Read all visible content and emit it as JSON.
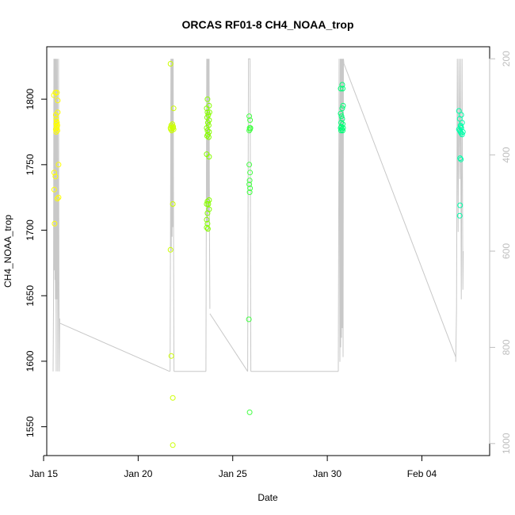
{
  "chart_data": {
    "type": "scatter",
    "title": "ORCAS RF01-8 CH4_NOAA_trop",
    "xlabel": "Date",
    "ylabel": "CH4_NOAA_trop",
    "x_axis": {
      "type": "date",
      "range": [
        "2016-01-15T04:00",
        "2016-02-07T14:00"
      ],
      "ticks": [
        {
          "value": "2016-01-15",
          "label": "Jan 15"
        },
        {
          "value": "2016-01-20",
          "label": "Jan 20"
        },
        {
          "value": "2016-01-25",
          "label": "Jan 25"
        },
        {
          "value": "2016-01-30",
          "label": "Jan 30"
        },
        {
          "value": "2016-02-04",
          "label": "Feb 04"
        }
      ]
    },
    "y_axis": {
      "range": [
        1528,
        1840
      ],
      "ticks": [
        1550,
        1600,
        1650,
        1700,
        1750,
        1800
      ]
    },
    "y2_axis": {
      "range": [
        1025,
        175
      ],
      "reversed": true,
      "color": "#bebebe",
      "ticks": [
        200,
        400,
        600,
        800,
        1000
      ]
    },
    "series": [
      {
        "color": "#ffff00",
        "points": [
          [
            "2016-01-15T13:00",
            1803
          ],
          [
            "2016-01-15T15:00",
            1805
          ],
          [
            "2016-01-15T17:00",
            1805
          ],
          [
            "2016-01-15T15:30",
            1788
          ],
          [
            "2016-01-15T16:00",
            1785
          ],
          [
            "2016-01-15T18:00",
            1790
          ],
          [
            "2016-01-15T16:30",
            1783
          ],
          [
            "2016-01-15T17:00",
            1782
          ],
          [
            "2016-01-15T16:00",
            1781
          ],
          [
            "2016-01-15T17:30",
            1780
          ],
          [
            "2016-01-15T16:30",
            1779
          ],
          [
            "2016-01-15T17:00",
            1778
          ],
          [
            "2016-01-15T15:30",
            1777
          ],
          [
            "2016-01-15T17:30",
            1776
          ],
          [
            "2016-01-15T16:00",
            1775
          ],
          [
            "2016-01-15T18:00",
            1799
          ],
          [
            "2016-01-15T13:30",
            1744
          ],
          [
            "2016-01-15T15:00",
            1741
          ],
          [
            "2016-01-15T19:00",
            1750
          ],
          [
            "2016-01-15T13:30",
            1731
          ],
          [
            "2016-01-15T17:30",
            1724
          ],
          [
            "2016-01-15T19:00",
            1725
          ],
          [
            "2016-01-15T14:00",
            1705
          ]
        ]
      },
      {
        "color": "#ccff00",
        "points": [
          [
            "2016-01-21T17:00",
            1827
          ],
          [
            "2016-01-21T21:00",
            1793
          ],
          [
            "2016-01-21T17:00",
            1778
          ],
          [
            "2016-01-21T18:00",
            1780
          ],
          [
            "2016-01-21T19:00",
            1779
          ],
          [
            "2016-01-21T20:00",
            1778
          ],
          [
            "2016-01-21T18:30",
            1776
          ],
          [
            "2016-01-21T20:30",
            1779
          ],
          [
            "2016-01-21T19:30",
            1781
          ],
          [
            "2016-01-21T21:00",
            1777
          ],
          [
            "2016-01-21T17:30",
            1777
          ],
          [
            "2016-01-21T20:00",
            1720
          ],
          [
            "2016-01-21T17:00",
            1685
          ],
          [
            "2016-01-21T18:00",
            1604
          ],
          [
            "2016-01-21T20:00",
            1572
          ],
          [
            "2016-01-21T20:00",
            1536
          ]
        ]
      },
      {
        "color": "#88ff00",
        "points": [
          [
            "2016-01-23T16:00",
            1800
          ],
          [
            "2016-01-23T18:00",
            1795
          ],
          [
            "2016-01-23T15:00",
            1793
          ],
          [
            "2016-01-23T16:00",
            1790
          ],
          [
            "2016-01-23T17:00",
            1788
          ],
          [
            "2016-01-23T15:30",
            1786
          ],
          [
            "2016-01-23T18:00",
            1784
          ],
          [
            "2016-01-23T16:30",
            1782
          ],
          [
            "2016-01-23T17:30",
            1780
          ],
          [
            "2016-01-23T15:00",
            1778
          ],
          [
            "2016-01-23T16:00",
            1776
          ],
          [
            "2016-01-23T18:00",
            1775
          ],
          [
            "2016-01-23T16:30",
            1773
          ],
          [
            "2016-01-23T17:30",
            1771
          ],
          [
            "2016-01-23T15:30",
            1772
          ],
          [
            "2016-01-23T18:30",
            1790
          ],
          [
            "2016-01-23T15:00",
            1758
          ],
          [
            "2016-01-23T18:00",
            1756
          ],
          [
            "2016-01-23T16:00",
            1722
          ],
          [
            "2016-01-23T18:00",
            1723
          ],
          [
            "2016-01-23T17:00",
            1720
          ],
          [
            "2016-01-23T15:00",
            1720
          ],
          [
            "2016-01-23T18:00",
            1716
          ],
          [
            "2016-01-23T16:00",
            1713
          ],
          [
            "2016-01-23T15:00",
            1708
          ],
          [
            "2016-01-23T16:00",
            1705
          ],
          [
            "2016-01-23T15:00",
            1702
          ],
          [
            "2016-01-23T16:30",
            1701
          ]
        ]
      },
      {
        "color": "#44ff44",
        "points": [
          [
            "2016-01-25T21:00",
            1787
          ],
          [
            "2016-01-25T22:00",
            1784
          ],
          [
            "2016-01-25T21:30",
            1778
          ],
          [
            "2016-01-25T22:00",
            1777
          ],
          [
            "2016-01-25T21:00",
            1776
          ],
          [
            "2016-01-25T22:30",
            1778
          ],
          [
            "2016-01-25T21:00",
            1750
          ],
          [
            "2016-01-25T22:00",
            1744
          ],
          [
            "2016-01-25T21:30",
            1738
          ],
          [
            "2016-01-25T21:00",
            1735
          ],
          [
            "2016-01-25T22:00",
            1732
          ],
          [
            "2016-01-25T21:30",
            1729
          ],
          [
            "2016-01-25T20:30",
            1632
          ],
          [
            "2016-01-25T21:30",
            1561
          ]
        ]
      },
      {
        "color": "#00ff77",
        "points": [
          [
            "2016-01-30T17:00",
            1808
          ],
          [
            "2016-01-30T19:00",
            1811
          ],
          [
            "2016-01-30T19:30",
            1808
          ],
          [
            "2016-01-30T20:00",
            1795
          ],
          [
            "2016-01-30T19:00",
            1793
          ],
          [
            "2016-01-30T17:00",
            1789
          ],
          [
            "2016-01-30T18:00",
            1787
          ],
          [
            "2016-01-30T19:00",
            1785
          ],
          [
            "2016-01-30T17:30",
            1782
          ],
          [
            "2016-01-30T19:30",
            1781
          ],
          [
            "2016-01-30T18:00",
            1779
          ],
          [
            "2016-01-30T17:00",
            1778
          ],
          [
            "2016-01-30T18:30",
            1777
          ],
          [
            "2016-01-30T19:30",
            1776
          ],
          [
            "2016-01-30T17:30",
            1776
          ],
          [
            "2016-01-30T20:00",
            1778
          ]
        ]
      },
      {
        "color": "#00ffaa",
        "points": [
          [
            "2016-02-05T23:00",
            1791
          ],
          [
            "2016-02-06T02:00",
            1788
          ],
          [
            "2016-02-06T00:00",
            1785
          ],
          [
            "2016-02-06T03:00",
            1782
          ],
          [
            "2016-02-06T01:00",
            1780
          ],
          [
            "2016-02-06T02:00",
            1778
          ],
          [
            "2016-02-05T23:00",
            1777
          ],
          [
            "2016-02-06T00:00",
            1776
          ],
          [
            "2016-02-06T01:00",
            1775
          ],
          [
            "2016-02-06T02:00",
            1774
          ],
          [
            "2016-02-06T03:00",
            1773
          ],
          [
            "2016-02-06T04:00",
            1775
          ],
          [
            "2016-02-06T01:30",
            1779
          ],
          [
            "2016-02-06T00:30",
            1755
          ],
          [
            "2016-02-06T01:30",
            1754
          ],
          [
            "2016-02-06T00:30",
            1719
          ],
          [
            "2016-02-06T00:00",
            1711
          ]
        ]
      }
    ],
    "altitude_trace": {
      "color": "#c8c8c8",
      "axis": "y2",
      "flights": [
        {
          "points": [
            [
              "2016-01-15T12:00",
              850
            ],
            [
              "2016-01-15T12:30",
              720
            ],
            [
              "2016-01-15T13:00",
              200
            ],
            [
              "2016-01-15T13:30",
              640
            ],
            [
              "2016-01-15T14:00",
              200
            ],
            [
              "2016-01-15T14:20",
              660
            ],
            [
              "2016-01-15T14:40",
              200
            ],
            [
              "2016-01-15T15:00",
              700
            ],
            [
              "2016-01-15T15:30",
              200
            ],
            [
              "2016-01-15T16:00",
              850
            ],
            [
              "2016-01-15T16:20",
              200
            ],
            [
              "2016-01-15T17:00",
              700
            ],
            [
              "2016-01-15T17:30",
              200
            ],
            [
              "2016-01-15T18:00",
              850
            ],
            [
              "2016-01-15T18:30",
              690
            ],
            [
              "2016-01-15T19:00",
              200
            ],
            [
              "2016-01-15T19:30",
              660
            ],
            [
              "2016-01-15T20:00",
              850
            ],
            [
              "2016-01-15T20:30",
              740
            ]
          ]
        },
        {
          "points": [
            [
              "2016-01-15T21:00",
              750
            ],
            [
              "2016-01-21T16:00",
              850
            ]
          ]
        },
        {
          "points": [
            [
              "2016-01-21T16:30",
              850
            ],
            [
              "2016-01-21T17:00",
              550
            ],
            [
              "2016-01-21T17:30",
              200
            ],
            [
              "2016-01-21T18:00",
              600
            ],
            [
              "2016-01-21T18:30",
              200
            ],
            [
              "2016-01-21T19:00",
              570
            ],
            [
              "2016-01-21T19:30",
              200
            ],
            [
              "2016-01-21T20:00",
              550
            ],
            [
              "2016-01-21T20:30",
              200
            ],
            [
              "2016-01-21T21:00",
              600
            ],
            [
              "2016-01-21T21:30",
              850
            ]
          ]
        },
        {
          "points": [
            [
              "2016-01-21T21:30",
              850
            ],
            [
              "2016-01-23T14:00",
              850
            ]
          ]
        },
        {
          "points": [
            [
              "2016-01-23T14:00",
              850
            ],
            [
              "2016-01-23T14:30",
              520
            ],
            [
              "2016-01-23T15:00",
              200
            ],
            [
              "2016-01-23T15:30",
              540
            ],
            [
              "2016-01-23T16:00",
              200
            ],
            [
              "2016-01-23T16:30",
              560
            ],
            [
              "2016-01-23T17:00",
              200
            ],
            [
              "2016-01-23T17:30",
              520
            ],
            [
              "2016-01-23T18:00",
              200
            ],
            [
              "2016-01-23T18:30",
              560
            ],
            [
              "2016-01-23T19:00",
              720
            ]
          ]
        },
        {
          "points": [
            [
              "2016-01-23T19:00",
              730
            ],
            [
              "2016-01-25T19:00",
              850
            ]
          ]
        },
        {
          "points": [
            [
              "2016-01-25T19:00",
              850
            ],
            [
              "2016-01-25T20:00",
              200
            ],
            [
              "2016-01-25T21:00",
              200
            ],
            [
              "2016-01-25T22:00",
              200
            ],
            [
              "2016-01-25T23:00",
              850
            ]
          ]
        },
        {
          "points": [
            [
              "2016-01-25T23:00",
              850
            ],
            [
              "2016-01-30T14:00",
              850
            ]
          ]
        },
        {
          "points": [
            [
              "2016-01-30T14:00",
              850
            ],
            [
              "2016-01-30T15:00",
              200
            ],
            [
              "2016-01-30T16:00",
              830
            ],
            [
              "2016-01-30T16:30",
              200
            ],
            [
              "2016-01-30T17:00",
              800
            ],
            [
              "2016-01-30T17:30",
              200
            ],
            [
              "2016-01-30T18:00",
              780
            ],
            [
              "2016-01-30T18:30",
              200
            ],
            [
              "2016-01-30T19:00",
              760
            ],
            [
              "2016-01-30T19:30",
              200
            ],
            [
              "2016-01-30T20:00",
              820
            ],
            [
              "2016-01-30T20:30",
              200
            ],
            [
              "2016-01-30T21:00",
              210
            ]
          ]
        },
        {
          "points": [
            [
              "2016-01-30T21:00",
              210
            ],
            [
              "2016-02-05T19:00",
              820
            ]
          ]
        },
        {
          "points": [
            [
              "2016-02-05T19:00",
              830
            ],
            [
              "2016-02-05T20:00",
              720
            ],
            [
              "2016-02-05T21:00",
              200
            ],
            [
              "2016-02-05T22:00",
              560
            ],
            [
              "2016-02-05T23:00",
              200
            ],
            [
              "2016-02-06T00:00",
              450
            ],
            [
              "2016-02-06T01:00",
              200
            ],
            [
              "2016-02-06T02:00",
              700
            ],
            [
              "2016-02-06T03:00",
              200
            ],
            [
              "2016-02-06T04:00",
              680
            ],
            [
              "2016-02-06T04:30",
              600
            ]
          ]
        }
      ]
    }
  }
}
